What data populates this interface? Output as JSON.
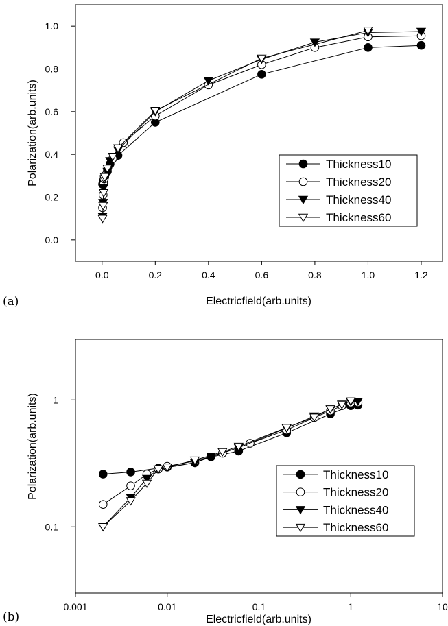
{
  "chart_data": [
    {
      "panel_label": "(a)",
      "type": "line",
      "xlabel": "Electricfield(arb.units)",
      "ylabel": "Polarization(arb.units)",
      "xscale": "linear",
      "yscale": "linear",
      "xlim": [
        -0.1,
        1.28
      ],
      "ylim": [
        -0.1,
        1.1
      ],
      "xticks": [
        0.0,
        0.2,
        0.4,
        0.6,
        0.8,
        1.0,
        1.2
      ],
      "xtick_labels": [
        "0.0",
        "0.2",
        "0.4",
        "0.6",
        "0.8",
        "1.0",
        "1.2"
      ],
      "yticks": [
        0.0,
        0.2,
        0.4,
        0.6,
        0.8,
        1.0
      ],
      "ytick_labels": [
        "0.0",
        "0.2",
        "0.4",
        "0.6",
        "0.8",
        "1.0"
      ],
      "grid": false,
      "legend_position": "lower-right",
      "series": [
        {
          "name": "Thickness10",
          "marker": "filled-circle",
          "x": [
            0.002,
            0.004,
            0.006,
            0.008,
            0.01,
            0.02,
            0.03,
            0.06,
            0.2,
            0.6,
            1.0,
            1.2
          ],
          "y": [
            0.26,
            0.27,
            0.28,
            0.29,
            0.295,
            0.32,
            0.355,
            0.395,
            0.55,
            0.775,
            0.9,
            0.91
          ]
        },
        {
          "name": "Thickness20",
          "marker": "open-circle",
          "x": [
            0.002,
            0.004,
            0.006,
            0.008,
            0.01,
            0.02,
            0.04,
            0.08,
            0.2,
            0.4,
            0.6,
            0.8,
            1.0,
            1.2
          ],
          "y": [
            0.15,
            0.21,
            0.26,
            0.285,
            0.3,
            0.33,
            0.38,
            0.455,
            0.58,
            0.725,
            0.82,
            0.9,
            0.95,
            0.955
          ]
        },
        {
          "name": "Thickness40",
          "marker": "filled-triangle-down",
          "x": [
            0.002,
            0.004,
            0.006,
            0.008,
            0.02,
            0.03,
            0.06,
            0.2,
            0.4,
            0.6,
            0.8,
            1.0,
            1.2
          ],
          "y": [
            0.11,
            0.175,
            0.245,
            0.285,
            0.32,
            0.37,
            0.42,
            0.6,
            0.745,
            0.845,
            0.925,
            0.97,
            0.975
          ]
        },
        {
          "name": "Thickness60",
          "marker": "open-triangle-down",
          "x": [
            0.002,
            0.004,
            0.006,
            0.008,
            0.01,
            0.02,
            0.04,
            0.06,
            0.2,
            0.6,
            1.0
          ],
          "y": [
            0.1,
            0.16,
            0.22,
            0.285,
            0.295,
            0.335,
            0.39,
            0.43,
            0.605,
            0.85,
            0.98
          ]
        }
      ]
    },
    {
      "panel_label": "(b)",
      "type": "line",
      "xlabel": "Electricfield(arb.units)",
      "ylabel": "Polarization(arb.units)",
      "xscale": "log",
      "yscale": "log",
      "xlim": [
        0.001,
        10
      ],
      "ylim": [
        0.03,
        3
      ],
      "xticks": [
        0.001,
        0.01,
        0.1,
        1,
        10
      ],
      "xtick_labels": [
        "0.001",
        "0.01",
        "0.1",
        "1",
        "10"
      ],
      "yticks": [
        0.1,
        1
      ],
      "ytick_labels": [
        "0.1",
        "1"
      ],
      "grid": false,
      "legend_position": "lower-right",
      "series": [
        {
          "name": "Thickness10",
          "marker": "filled-circle",
          "x": [
            0.002,
            0.004,
            0.008,
            0.01,
            0.02,
            0.03,
            0.06,
            0.2,
            0.6,
            1.0,
            1.2
          ],
          "y": [
            0.26,
            0.27,
            0.29,
            0.295,
            0.32,
            0.355,
            0.395,
            0.55,
            0.775,
            0.9,
            0.91
          ]
        },
        {
          "name": "Thickness20",
          "marker": "open-circle",
          "x": [
            0.002,
            0.004,
            0.006,
            0.008,
            0.01,
            0.02,
            0.04,
            0.08,
            0.2,
            0.4,
            0.6,
            0.8,
            1.0,
            1.2
          ],
          "y": [
            0.15,
            0.21,
            0.26,
            0.285,
            0.3,
            0.33,
            0.38,
            0.455,
            0.58,
            0.725,
            0.82,
            0.9,
            0.95,
            0.955
          ]
        },
        {
          "name": "Thickness40",
          "marker": "filled-triangle-down",
          "x": [
            0.002,
            0.004,
            0.006,
            0.008,
            0.02,
            0.03,
            0.06,
            0.2,
            0.4,
            0.6,
            0.8,
            1.0,
            1.2
          ],
          "y": [
            0.1,
            0.17,
            0.24,
            0.285,
            0.32,
            0.36,
            0.42,
            0.6,
            0.745,
            0.845,
            0.925,
            0.97,
            0.975
          ]
        },
        {
          "name": "Thickness60",
          "marker": "open-triangle-down",
          "x": [
            0.002,
            0.004,
            0.006,
            0.008,
            0.01,
            0.02,
            0.04,
            0.06,
            0.2,
            0.4,
            0.6,
            0.8,
            1.0
          ],
          "y": [
            0.1,
            0.16,
            0.22,
            0.285,
            0.295,
            0.335,
            0.39,
            0.43,
            0.605,
            0.73,
            0.85,
            0.92,
            0.98
          ]
        }
      ]
    }
  ]
}
